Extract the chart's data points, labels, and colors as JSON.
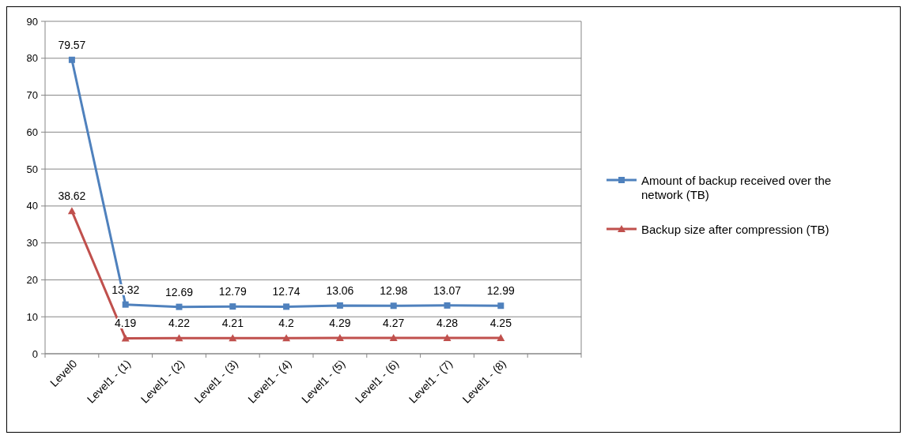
{
  "chart_data": {
    "type": "line",
    "categories": [
      "Level0",
      "Level1 - (1)",
      "Level1 - (2)",
      "Level1 - (3)",
      "Level1 - (4)",
      "Level1 - (5)",
      "Level1 - (6)",
      "Level1 - (7)",
      "Level1 - (8)",
      null
    ],
    "series": [
      {
        "name": "Amount of backup received over the network (TB)",
        "color": "#4f81bd",
        "marker": "square",
        "values": [
          79.57,
          13.32,
          12.69,
          12.79,
          12.74,
          13.06,
          12.98,
          13.07,
          12.99,
          null
        ]
      },
      {
        "name": "Backup size after compression (TB)",
        "color": "#c0504d",
        "marker": "triangle",
        "values": [
          38.62,
          4.19,
          4.22,
          4.21,
          4.2,
          4.29,
          4.27,
          4.28,
          4.25,
          null
        ]
      }
    ],
    "ylim": [
      0,
      90
    ],
    "yticks": [
      0,
      10,
      20,
      30,
      40,
      50,
      60,
      70,
      80,
      90
    ],
    "grid": "y",
    "legend": "right",
    "data_labels": true,
    "line_style": "solid"
  }
}
